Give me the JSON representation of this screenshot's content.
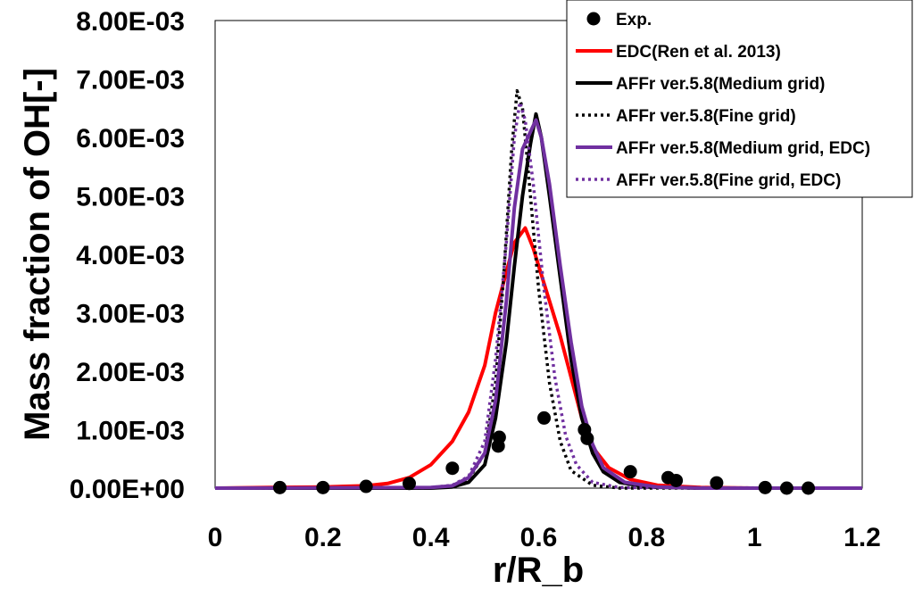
{
  "chart_data": {
    "type": "line",
    "title": "",
    "xlabel": "r/R_b",
    "ylabel": "Mass fraction of OH[-]",
    "xlim": [
      0,
      1.2
    ],
    "ylim": [
      0,
      0.008
    ],
    "x_ticks": [
      "0",
      "0.2",
      "0.4",
      "0.6",
      "0.8",
      "1",
      "1.2"
    ],
    "y_ticks": [
      "0.00E+00",
      "1.00E-03",
      "2.00E-03",
      "3.00E-03",
      "4.00E-03",
      "5.00E-03",
      "6.00E-03",
      "7.00E-03",
      "8.00E-03"
    ],
    "grid": false,
    "legend_position": "top-right",
    "series": [
      {
        "name": "Exp.",
        "kind": "scatter",
        "color": "#000000",
        "points": [
          [
            0.12,
            1e-05
          ],
          [
            0.2,
            1e-05
          ],
          [
            0.28,
            3e-05
          ],
          [
            0.36,
            8e-05
          ],
          [
            0.44,
            0.00034
          ],
          [
            0.525,
            0.00072
          ],
          [
            0.527,
            0.00087
          ],
          [
            0.61,
            0.0012
          ],
          [
            0.685,
            0.001
          ],
          [
            0.69,
            0.00085
          ],
          [
            0.77,
            0.00028
          ],
          [
            0.84,
            0.00018
          ],
          [
            0.855,
            0.00013
          ],
          [
            0.93,
            9e-05
          ],
          [
            1.02,
            1e-05
          ],
          [
            1.06,
            0.0
          ],
          [
            1.1,
            0.0
          ]
        ]
      },
      {
        "name": "EDC(Ren et al. 2013)",
        "kind": "line",
        "color": "#ff0000",
        "dash": "solid",
        "points": [
          [
            0.0,
            0.0
          ],
          [
            0.1,
            1e-05
          ],
          [
            0.2,
            2e-05
          ],
          [
            0.28,
            4e-05
          ],
          [
            0.32,
            8e-05
          ],
          [
            0.36,
            0.00018
          ],
          [
            0.4,
            0.0004
          ],
          [
            0.44,
            0.0008
          ],
          [
            0.47,
            0.0013
          ],
          [
            0.5,
            0.0021
          ],
          [
            0.52,
            0.003
          ],
          [
            0.54,
            0.0037
          ],
          [
            0.555,
            0.0042
          ],
          [
            0.575,
            0.00445
          ],
          [
            0.59,
            0.0041
          ],
          [
            0.6,
            0.0038
          ],
          [
            0.62,
            0.0032
          ],
          [
            0.64,
            0.0026
          ],
          [
            0.66,
            0.0019
          ],
          [
            0.68,
            0.0012
          ],
          [
            0.7,
            0.0007
          ],
          [
            0.73,
            0.00035
          ],
          [
            0.77,
            0.00015
          ],
          [
            0.82,
            5e-05
          ],
          [
            0.9,
            1e-05
          ],
          [
            1.0,
            0.0
          ],
          [
            1.2,
            0.0
          ]
        ]
      },
      {
        "name": "AFFr ver.5.8(Medium grid)",
        "kind": "line",
        "color": "#000000",
        "dash": "solid",
        "points": [
          [
            0.0,
            0.0
          ],
          [
            0.4,
            0.0
          ],
          [
            0.44,
            2e-05
          ],
          [
            0.47,
            0.0001
          ],
          [
            0.5,
            0.0004
          ],
          [
            0.52,
            0.0012
          ],
          [
            0.54,
            0.0025
          ],
          [
            0.555,
            0.0038
          ],
          [
            0.57,
            0.005
          ],
          [
            0.585,
            0.0059
          ],
          [
            0.595,
            0.0064
          ],
          [
            0.605,
            0.006
          ],
          [
            0.62,
            0.005
          ],
          [
            0.64,
            0.0036
          ],
          [
            0.66,
            0.0022
          ],
          [
            0.68,
            0.0012
          ],
          [
            0.7,
            0.0006
          ],
          [
            0.72,
            0.00028
          ],
          [
            0.75,
            0.0001
          ],
          [
            0.8,
            2e-05
          ],
          [
            0.9,
            0.0
          ],
          [
            1.2,
            0.0
          ]
        ]
      },
      {
        "name": "AFFr ver.5.8(Fine grid)",
        "kind": "line",
        "color": "#000000",
        "dash": "dotted",
        "points": [
          [
            0.0,
            0.0
          ],
          [
            0.4,
            0.0
          ],
          [
            0.44,
            3e-05
          ],
          [
            0.47,
            0.00015
          ],
          [
            0.5,
            0.0006
          ],
          [
            0.52,
            0.0018
          ],
          [
            0.535,
            0.0036
          ],
          [
            0.55,
            0.0058
          ],
          [
            0.56,
            0.0068
          ],
          [
            0.57,
            0.0065
          ],
          [
            0.58,
            0.0055
          ],
          [
            0.6,
            0.0034
          ],
          [
            0.62,
            0.0018
          ],
          [
            0.64,
            0.0008
          ],
          [
            0.66,
            0.0003
          ],
          [
            0.7,
            5e-05
          ],
          [
            0.75,
            0.0
          ],
          [
            1.2,
            0.0
          ]
        ]
      },
      {
        "name": "AFFr ver.5.8(Medium grid, EDC)",
        "kind": "line",
        "color": "#7030a0",
        "dash": "solid",
        "points": [
          [
            0.0,
            0.0
          ],
          [
            0.4,
            1e-05
          ],
          [
            0.44,
            4e-05
          ],
          [
            0.47,
            0.00018
          ],
          [
            0.5,
            0.0006
          ],
          [
            0.52,
            0.0015
          ],
          [
            0.54,
            0.0032
          ],
          [
            0.555,
            0.0048
          ],
          [
            0.57,
            0.0058
          ],
          [
            0.585,
            0.0061
          ],
          [
            0.595,
            0.0063
          ],
          [
            0.605,
            0.006
          ],
          [
            0.62,
            0.0052
          ],
          [
            0.64,
            0.0038
          ],
          [
            0.66,
            0.0025
          ],
          [
            0.68,
            0.0014
          ],
          [
            0.7,
            0.00075
          ],
          [
            0.72,
            0.00035
          ],
          [
            0.76,
            0.0001
          ],
          [
            0.82,
            2e-05
          ],
          [
            0.9,
            0.0
          ],
          [
            1.2,
            0.0
          ]
        ]
      },
      {
        "name": "AFFr ver.5.8(Fine grid, EDC)",
        "kind": "line",
        "color": "#7030a0",
        "dash": "dotted",
        "points": [
          [
            0.0,
            0.0
          ],
          [
            0.4,
            1e-05
          ],
          [
            0.44,
            5e-05
          ],
          [
            0.47,
            0.0002
          ],
          [
            0.5,
            0.0008
          ],
          [
            0.52,
            0.0022
          ],
          [
            0.54,
            0.0042
          ],
          [
            0.555,
            0.006
          ],
          [
            0.565,
            0.0066
          ],
          [
            0.575,
            0.0063
          ],
          [
            0.59,
            0.0052
          ],
          [
            0.61,
            0.0034
          ],
          [
            0.63,
            0.0019
          ],
          [
            0.65,
            0.0009
          ],
          [
            0.67,
            0.0004
          ],
          [
            0.7,
            0.0001
          ],
          [
            0.75,
            1e-05
          ],
          [
            1.2,
            0.0
          ]
        ]
      }
    ]
  }
}
